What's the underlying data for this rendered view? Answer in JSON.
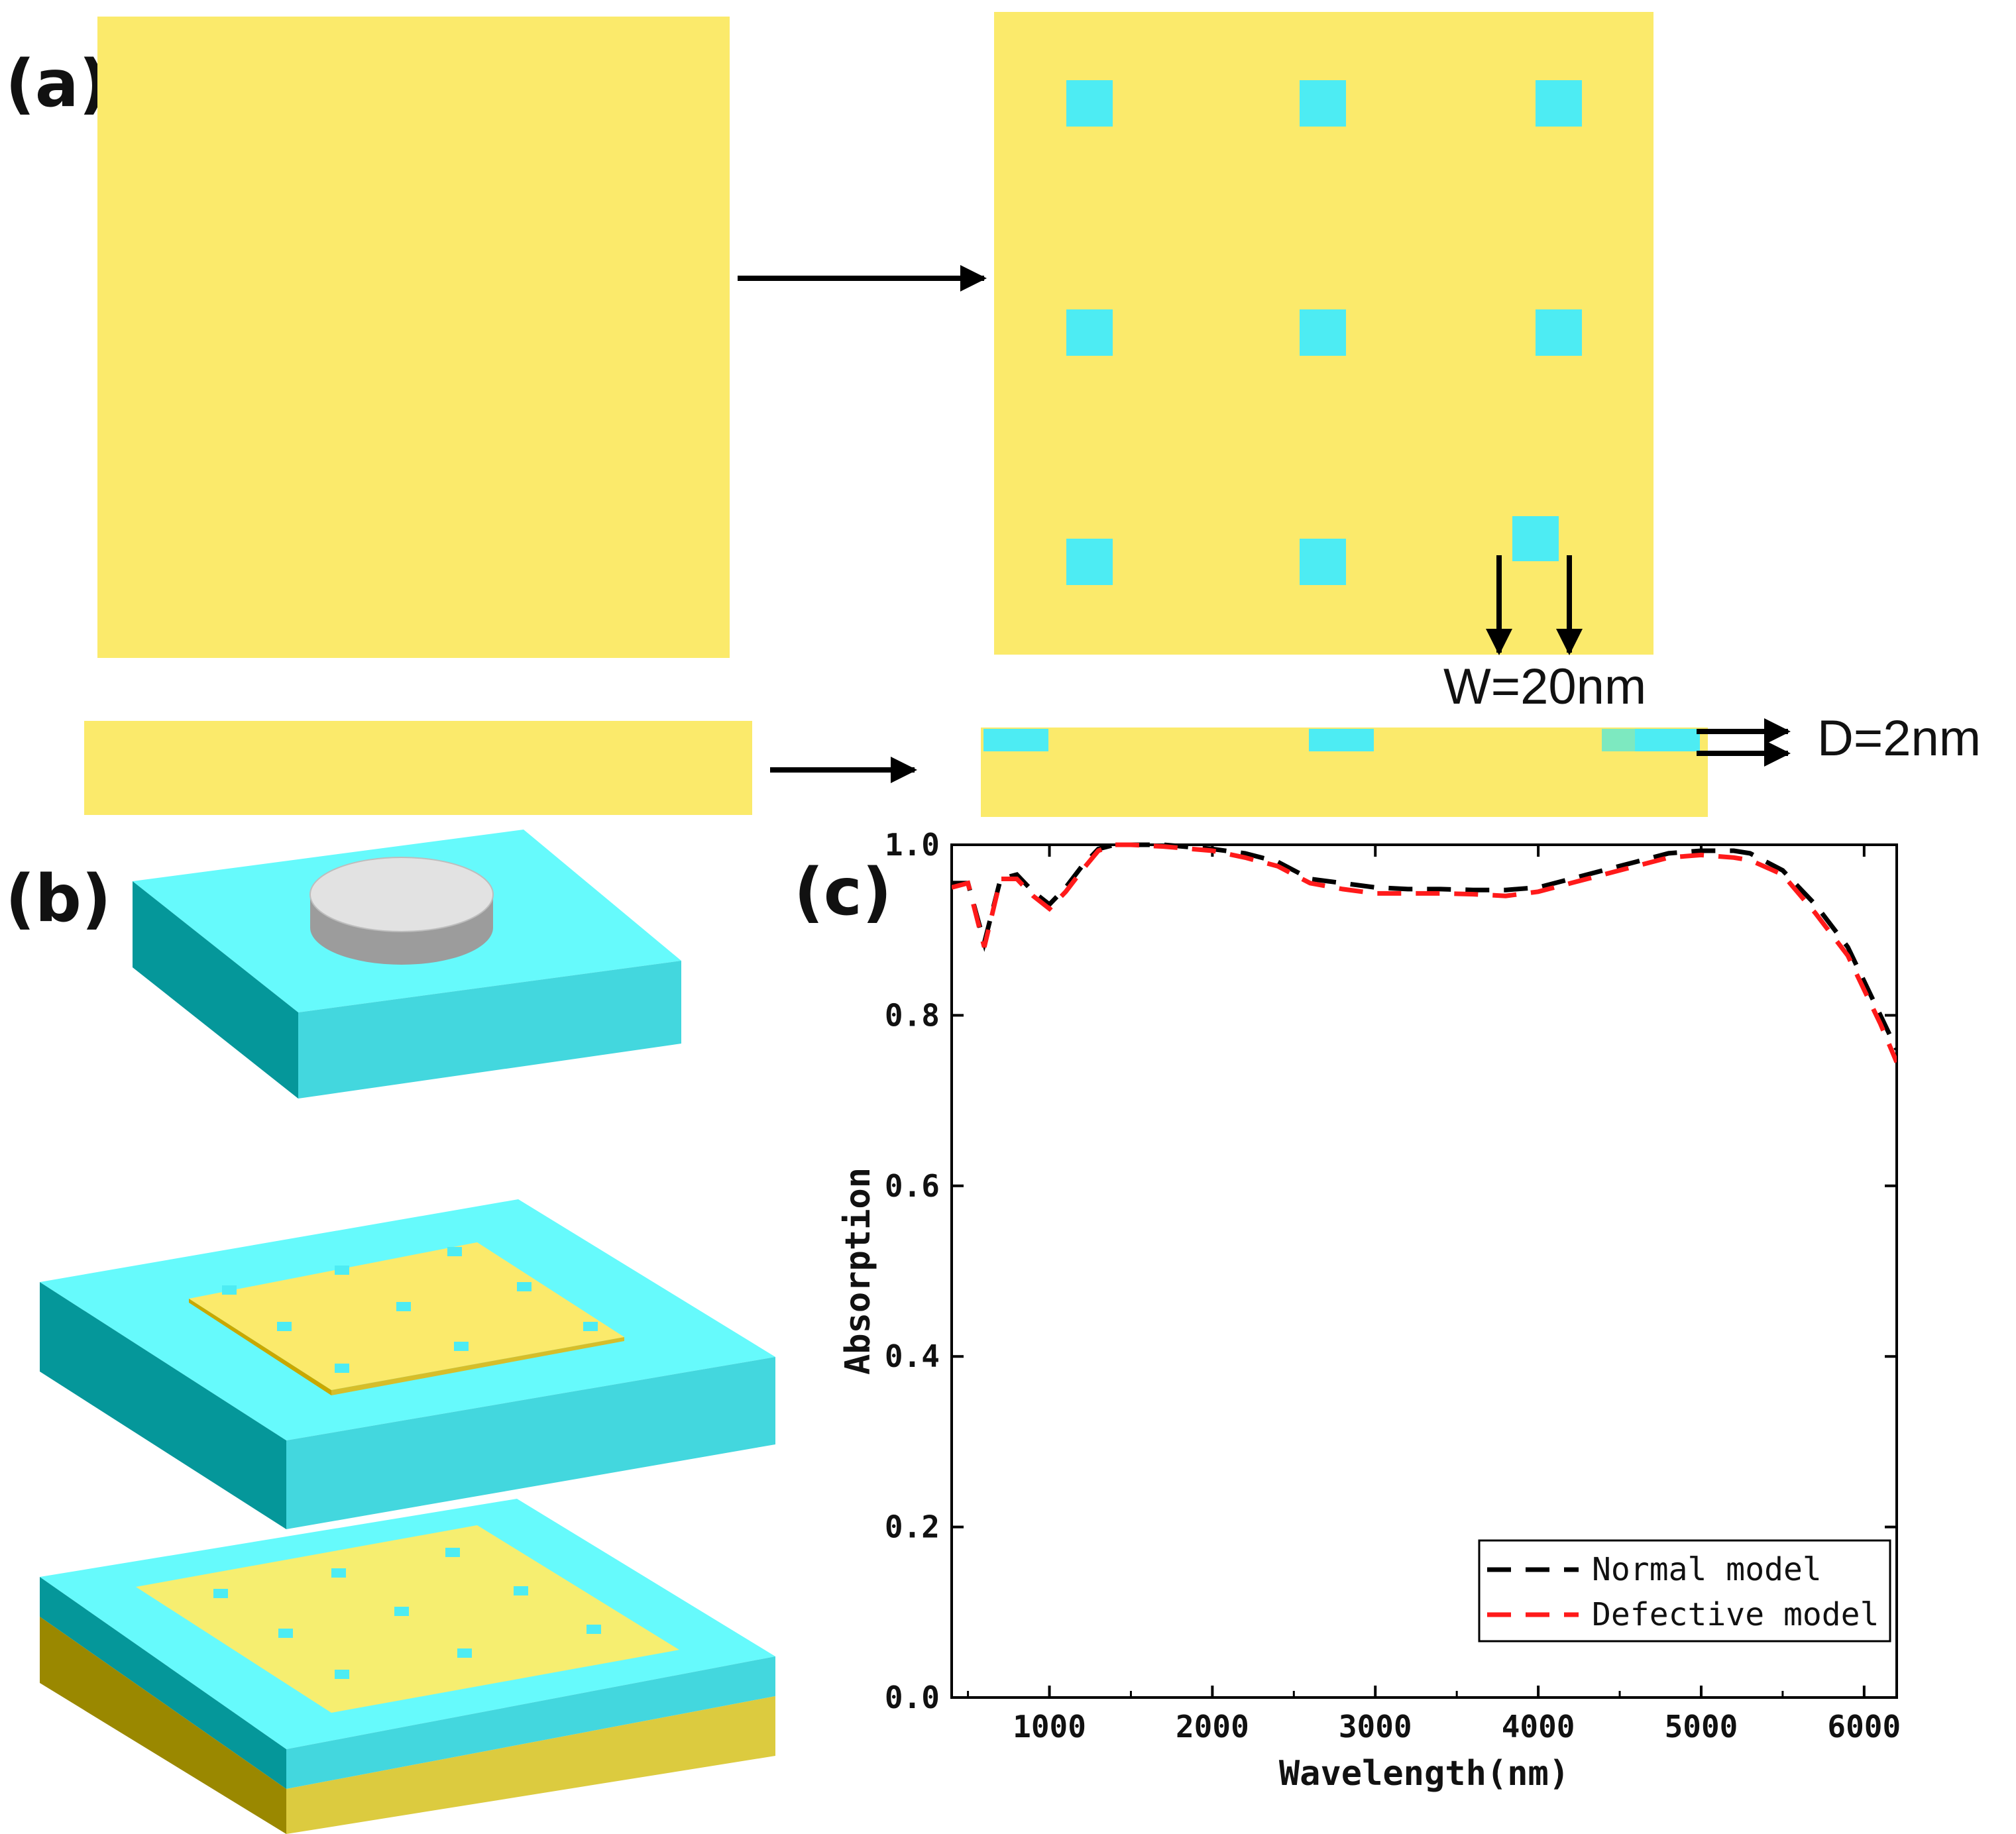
{
  "figure": {
    "panel_a": {
      "label": "(a)",
      "width_annotation": "W=20nm",
      "depth_annotation": "D=2nm"
    },
    "panel_b": {
      "label": "(b)"
    },
    "panel_c": {
      "label": "(c)"
    }
  },
  "colors": {
    "gold": "#FBEA6B",
    "cyan": "#4DECF3",
    "normal_line": "#000000",
    "defective_line": "#FF1A1A"
  },
  "chart_data": {
    "type": "line",
    "title": "",
    "xlabel": "Wavelength(nm)",
    "ylabel": "Absorption",
    "xlim": [
      400,
      6200
    ],
    "ylim": [
      0.0,
      1.0
    ],
    "xticks": [
      1000,
      2000,
      3000,
      4000,
      5000,
      6000
    ],
    "yticks": [
      0.0,
      0.2,
      0.4,
      0.6,
      0.8,
      1.0
    ],
    "xtick_labels": [
      "1000",
      "2000",
      "3000",
      "4000",
      "5000",
      "6000"
    ],
    "ytick_labels": [
      "0.0",
      "0.2",
      "0.4",
      "0.6",
      "0.8",
      "1.0"
    ],
    "legend_position": "bottom-right",
    "series": [
      {
        "name": "Normal model",
        "style": "dashed",
        "x": [
          400,
          500,
          600,
          700,
          800,
          900,
          1000,
          1100,
          1200,
          1300,
          1400,
          1500,
          1700,
          2000,
          2200,
          2400,
          2600,
          2800,
          3000,
          3200,
          3400,
          3600,
          3800,
          4000,
          4200,
          4400,
          4600,
          4800,
          5000,
          5200,
          5300,
          5500,
          5700,
          5900,
          6100,
          6200
        ],
        "y": [
          0.955,
          0.955,
          0.885,
          0.96,
          0.965,
          0.945,
          0.93,
          0.95,
          0.975,
          0.995,
          1.0,
          1.0,
          1.0,
          0.995,
          0.99,
          0.98,
          0.96,
          0.955,
          0.95,
          0.948,
          0.948,
          0.947,
          0.947,
          0.95,
          0.96,
          0.97,
          0.98,
          0.99,
          0.993,
          0.993,
          0.99,
          0.97,
          0.93,
          0.88,
          0.8,
          0.76
        ]
      },
      {
        "name": "Defective model",
        "style": "dashed",
        "x": [
          400,
          500,
          600,
          700,
          800,
          900,
          1000,
          1100,
          1200,
          1300,
          1400,
          1500,
          1700,
          2000,
          2200,
          2400,
          2600,
          2800,
          3000,
          3200,
          3400,
          3600,
          3800,
          4000,
          4200,
          4400,
          4600,
          4800,
          5000,
          5200,
          5300,
          5500,
          5700,
          5900,
          6100,
          6200
        ],
        "y": [
          0.95,
          0.955,
          0.88,
          0.96,
          0.96,
          0.94,
          0.925,
          0.945,
          0.97,
          0.993,
          1.0,
          1.0,
          0.998,
          0.993,
          0.985,
          0.975,
          0.955,
          0.948,
          0.943,
          0.943,
          0.943,
          0.942,
          0.94,
          0.945,
          0.955,
          0.965,
          0.975,
          0.985,
          0.988,
          0.985,
          0.982,
          0.965,
          0.92,
          0.87,
          0.79,
          0.745
        ]
      }
    ]
  }
}
